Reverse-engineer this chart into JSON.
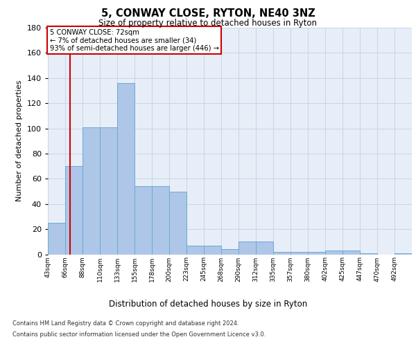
{
  "title": "5, CONWAY CLOSE, RYTON, NE40 3NZ",
  "subtitle": "Size of property relative to detached houses in Ryton",
  "xlabel": "Distribution of detached houses by size in Ryton",
  "ylabel": "Number of detached properties",
  "property_label": "5 CONWAY CLOSE: 72sqm",
  "annotation_line1": "← 7% of detached houses are smaller (34)",
  "annotation_line2": "93% of semi-detached houses are larger (446) →",
  "bar_heights": [
    25,
    70,
    101,
    101,
    136,
    54,
    54,
    50,
    7,
    7,
    4,
    10,
    10,
    2,
    2,
    2,
    3,
    3,
    1,
    0,
    1
  ],
  "categories": [
    "43sqm",
    "66sqm",
    "88sqm",
    "110sqm",
    "133sqm",
    "155sqm",
    "178sqm",
    "200sqm",
    "223sqm",
    "245sqm",
    "268sqm",
    "290sqm",
    "312sqm",
    "335sqm",
    "357sqm",
    "380sqm",
    "402sqm",
    "425sqm",
    "447sqm",
    "470sqm",
    "492sqm"
  ],
  "bar_fill_color": "#aec6e8",
  "bar_edge_color": "#6aaad4",
  "vline_color": "#cc0000",
  "vline_x_idx": 1.27,
  "annotation_box_color": "#cc0000",
  "grid_color": "#c8d8ec",
  "background_color": "#e8eef8",
  "ylim": [
    0,
    180
  ],
  "yticks": [
    0,
    20,
    40,
    60,
    80,
    100,
    120,
    140,
    160,
    180
  ],
  "footer_line1": "Contains HM Land Registry data © Crown copyright and database right 2024.",
  "footer_line2": "Contains public sector information licensed under the Open Government Licence v3.0."
}
